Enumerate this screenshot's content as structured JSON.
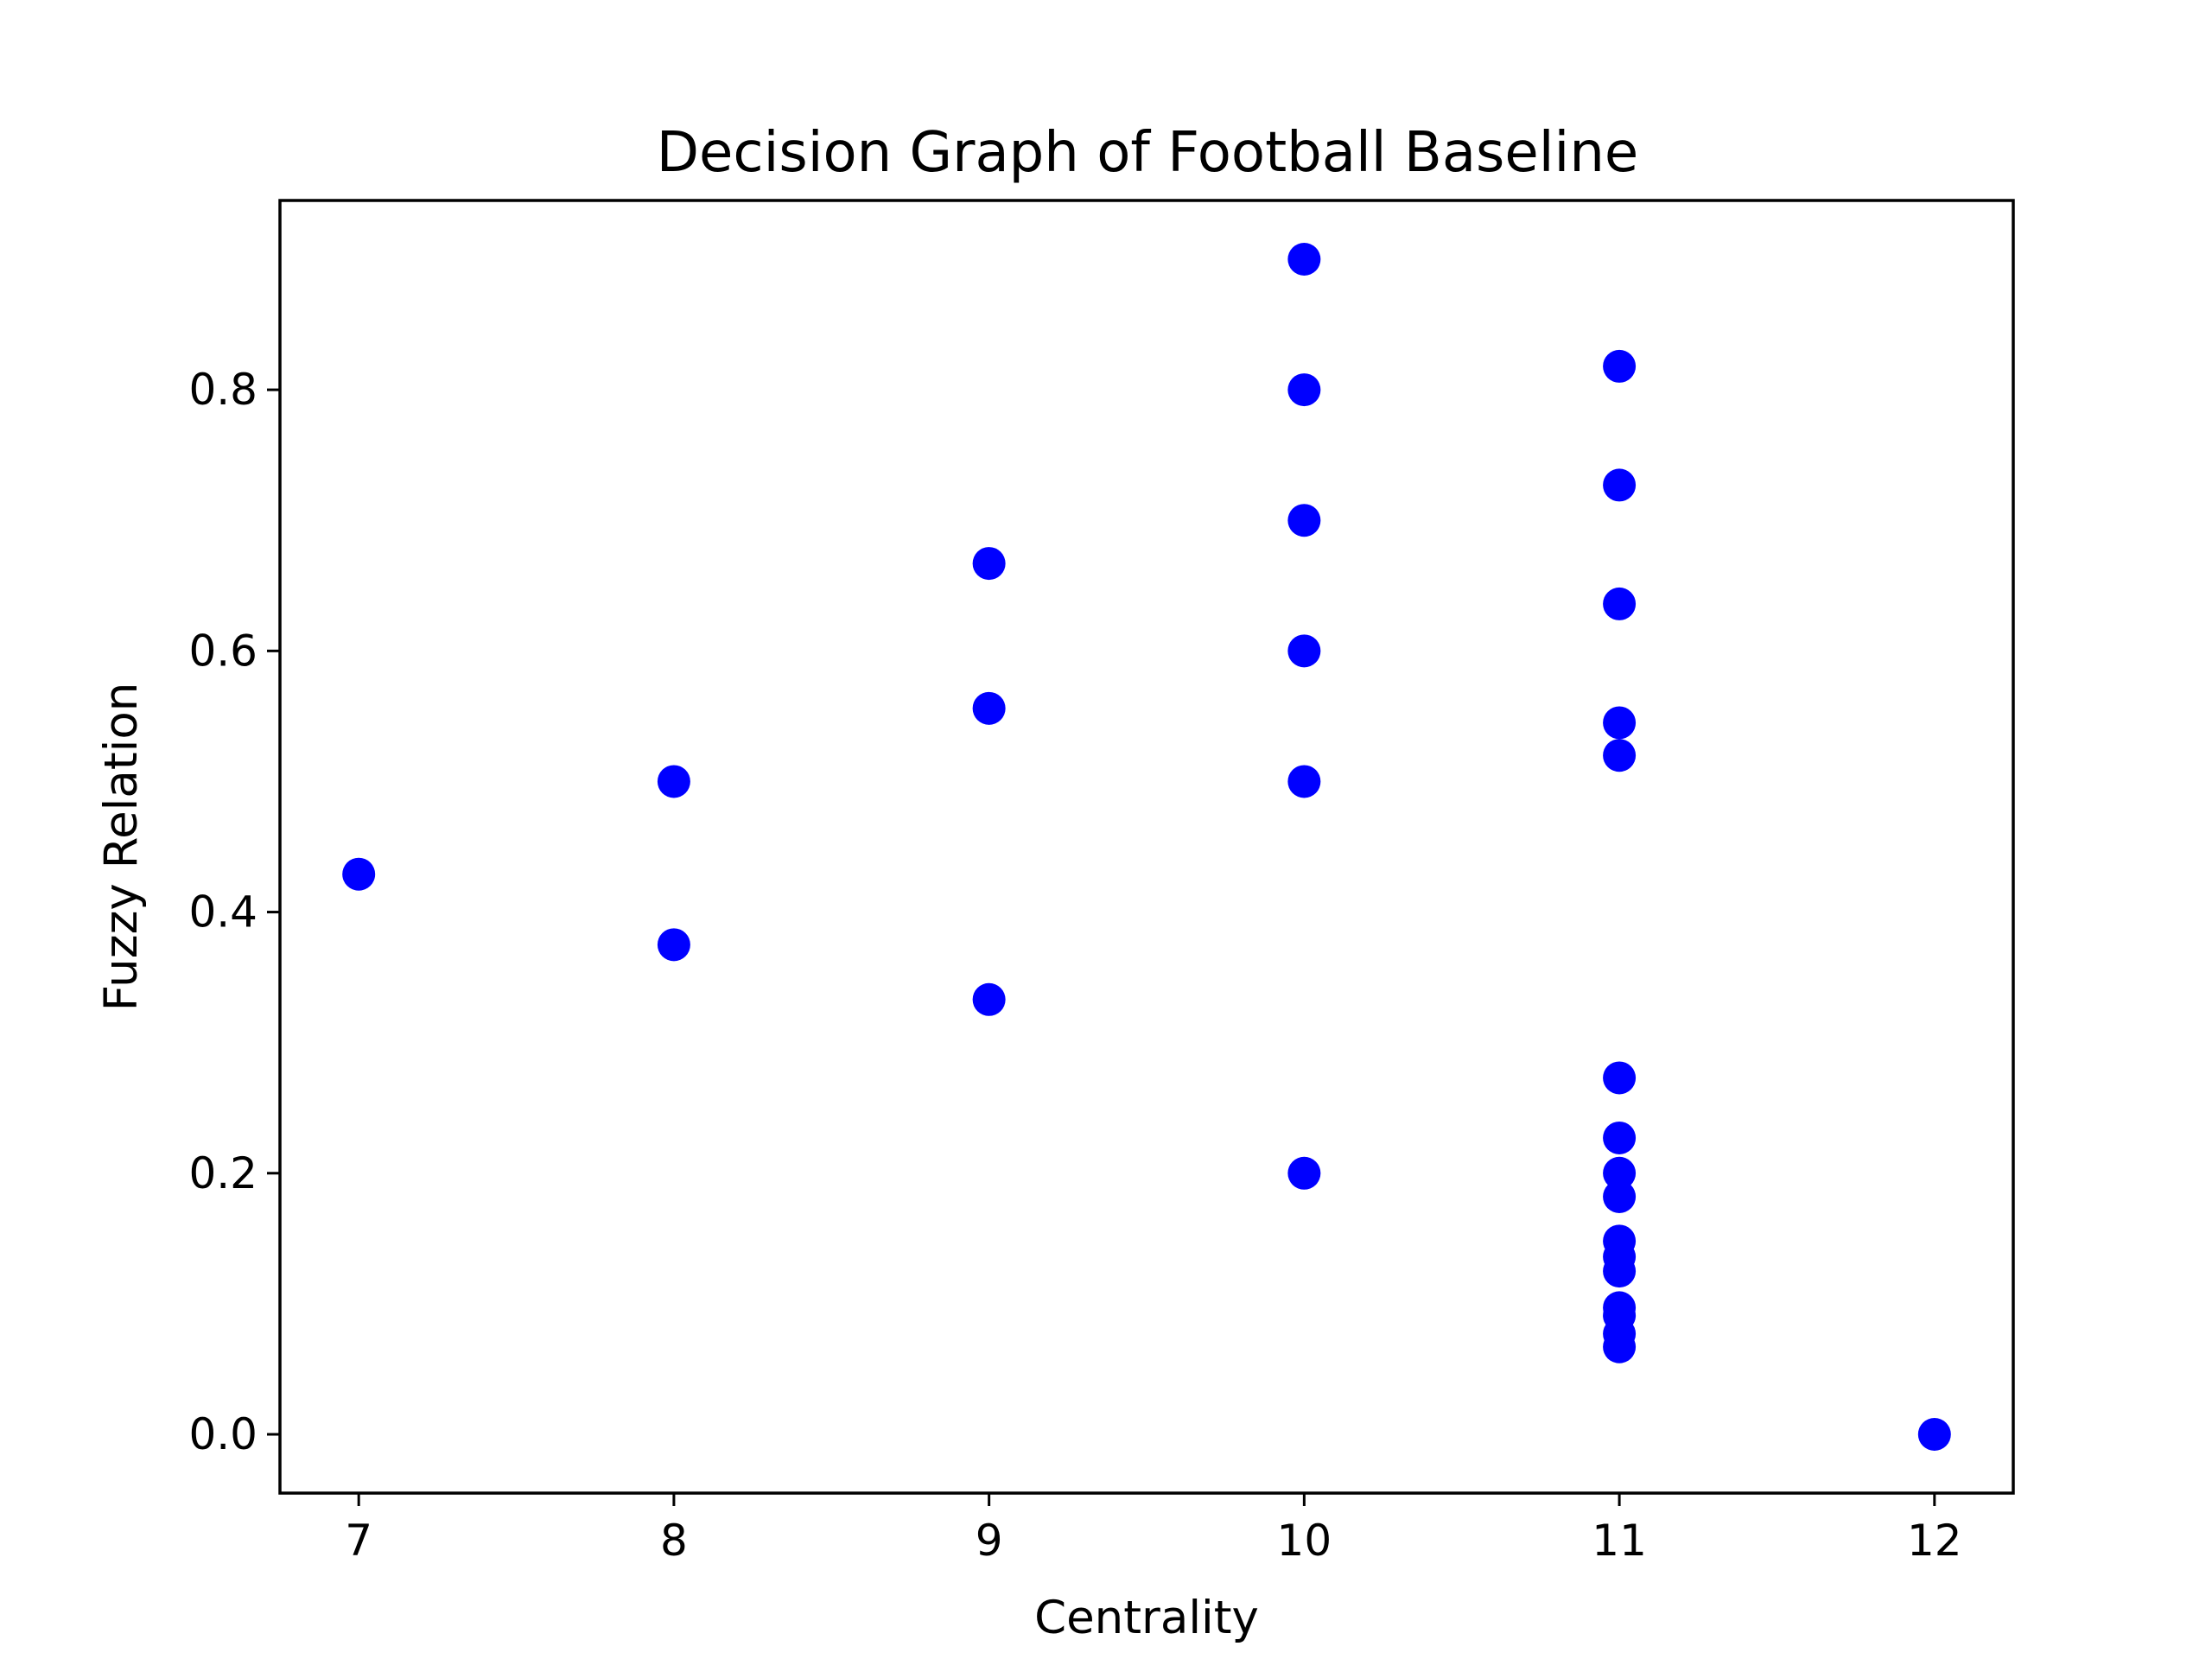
{
  "chart_data": {
    "type": "scatter",
    "title": "Decision Graph of Football Baseline",
    "xlabel": "Centrality",
    "ylabel": "Fuzzy Relation",
    "xlim": [
      6.75,
      12.25
    ],
    "ylim": [
      -0.045,
      0.945
    ],
    "xticks": [
      7,
      8,
      9,
      10,
      11,
      12
    ],
    "xtick_labels": [
      "7",
      "8",
      "9",
      "10",
      "11",
      "12"
    ],
    "yticks": [
      0.0,
      0.2,
      0.4,
      0.6,
      0.8
    ],
    "ytick_labels": [
      "0.0",
      "0.2",
      "0.4",
      "0.6",
      "0.8"
    ],
    "grid": false,
    "marker_color": "#0000ff",
    "points": [
      {
        "x": 7,
        "y": 0.429
      },
      {
        "x": 8,
        "y": 0.5
      },
      {
        "x": 8,
        "y": 0.375
      },
      {
        "x": 9,
        "y": 0.667
      },
      {
        "x": 9,
        "y": 0.556
      },
      {
        "x": 9,
        "y": 0.333
      },
      {
        "x": 10,
        "y": 0.9
      },
      {
        "x": 10,
        "y": 0.8
      },
      {
        "x": 10,
        "y": 0.7
      },
      {
        "x": 10,
        "y": 0.6
      },
      {
        "x": 10,
        "y": 0.5
      },
      {
        "x": 10,
        "y": 0.2
      },
      {
        "x": 11,
        "y": 0.818
      },
      {
        "x": 11,
        "y": 0.727
      },
      {
        "x": 11,
        "y": 0.636
      },
      {
        "x": 11,
        "y": 0.545
      },
      {
        "x": 11,
        "y": 0.52
      },
      {
        "x": 11,
        "y": 0.273
      },
      {
        "x": 11,
        "y": 0.227
      },
      {
        "x": 11,
        "y": 0.2
      },
      {
        "x": 11,
        "y": 0.182
      },
      {
        "x": 11,
        "y": 0.148
      },
      {
        "x": 11,
        "y": 0.136
      },
      {
        "x": 11,
        "y": 0.125
      },
      {
        "x": 11,
        "y": 0.097
      },
      {
        "x": 11,
        "y": 0.091
      },
      {
        "x": 11,
        "y": 0.077
      },
      {
        "x": 11,
        "y": 0.067
      },
      {
        "x": 12,
        "y": 0.0
      }
    ]
  }
}
